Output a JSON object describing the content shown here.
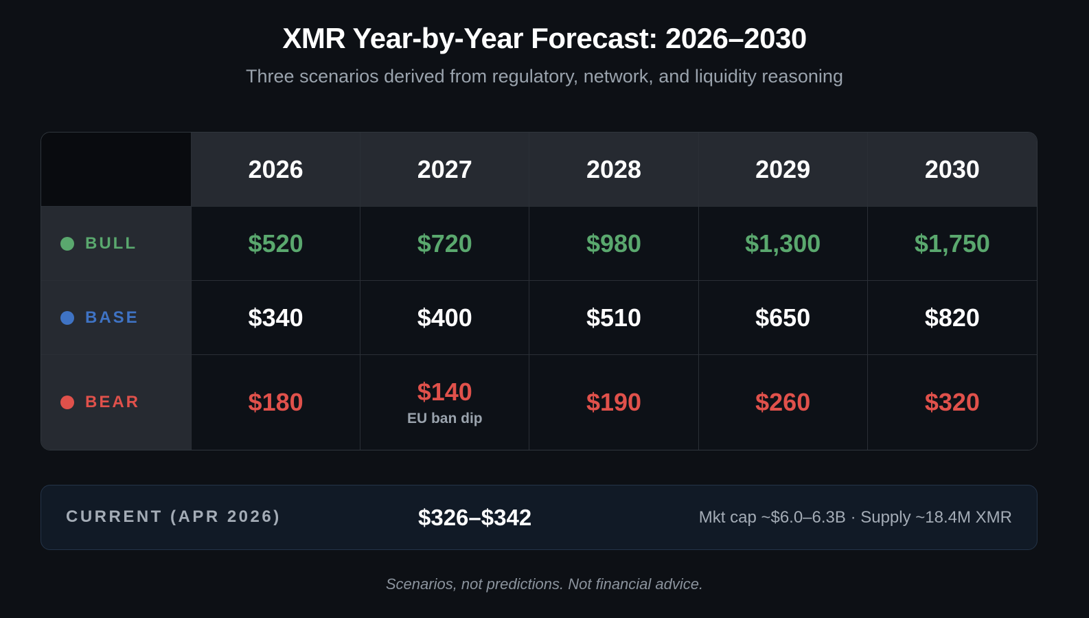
{
  "header": {
    "title": "XMR Year-by-Year Forecast: 2026–2030",
    "subtitle": "Three scenarios derived from regulatory, network, and liquidity reasoning"
  },
  "table": {
    "columns": [
      "2026",
      "2027",
      "2028",
      "2029",
      "2030"
    ],
    "rows": [
      {
        "label": "BULL",
        "color": "#5aa86e",
        "value_color": "#5aa86e",
        "values": [
          "$520",
          "$720",
          "$980",
          "$1,300",
          "$1,750"
        ]
      },
      {
        "label": "BASE",
        "color": "#3f73c4",
        "value_color": "#ffffff",
        "values": [
          "$340",
          "$400",
          "$510",
          "$650",
          "$820"
        ]
      },
      {
        "label": "BEAR",
        "color": "#e0514b",
        "value_color": "#e0514b",
        "values": [
          "$180",
          {
            "text": "$140",
            "note": "EU ban dip"
          },
          "$190",
          "$260",
          "$320"
        ]
      }
    ]
  },
  "current": {
    "label": "CURRENT (APR 2026)",
    "price": "$326–$342",
    "details": "Mkt cap ~$6.0–6.3B · Supply ~18.4M XMR"
  },
  "disclaimer": "Scenarios, not predictions. Not financial advice."
}
